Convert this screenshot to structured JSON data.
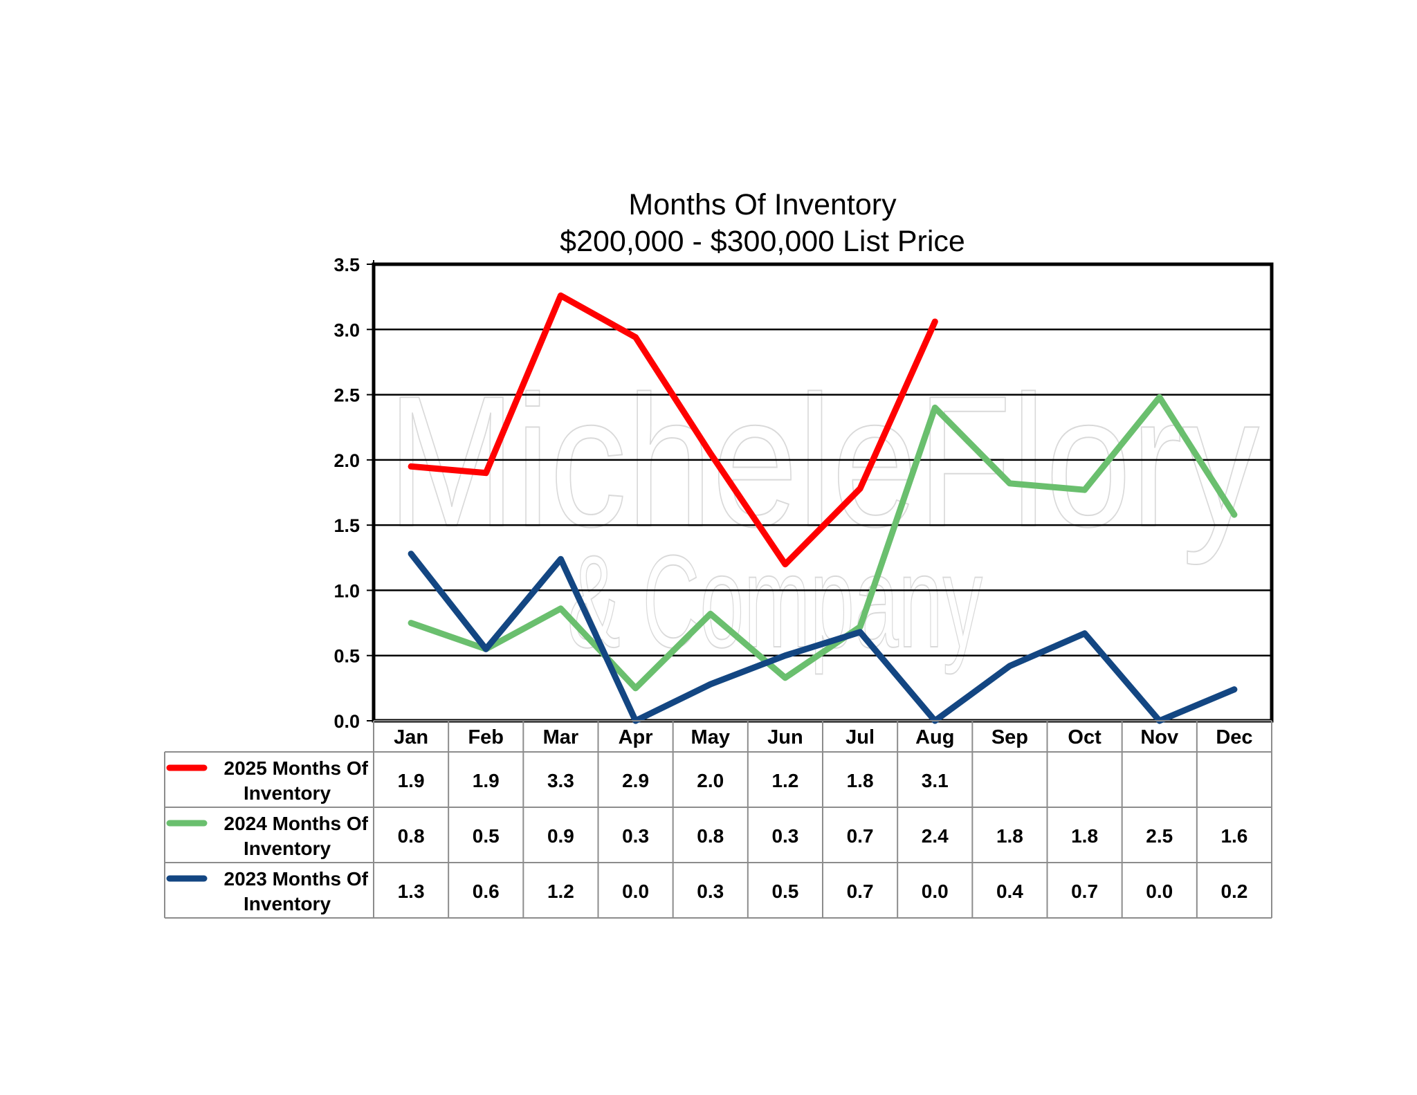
{
  "chart_data": {
    "type": "line",
    "title": "Months Of Inventory",
    "subtitle": "$200,000 - $300,000 List Price",
    "watermark": [
      "MicheleFlory",
      "& Company"
    ],
    "categories": [
      "Jan",
      "Feb",
      "Mar",
      "Apr",
      "May",
      "Jun",
      "Jul",
      "Aug",
      "Sep",
      "Oct",
      "Nov",
      "Dec"
    ],
    "ylim": [
      0,
      3.5
    ],
    "yticks": [
      "0.0",
      "0.5",
      "1.0",
      "1.5",
      "2.0",
      "2.5",
      "3.0",
      "3.5"
    ],
    "grid": true,
    "series": [
      {
        "name_line1": "2025 Months Of",
        "name_line2": "Inventory",
        "color": "#ff0000",
        "values": [
          1.95,
          1.9,
          3.26,
          2.94,
          2.05,
          1.2,
          1.78,
          3.06,
          null,
          null,
          null,
          null
        ],
        "labels": [
          "1.9",
          "1.9",
          "3.3",
          "2.9",
          "2.0",
          "1.2",
          "1.8",
          "3.1",
          "",
          "",
          "",
          ""
        ]
      },
      {
        "name_line1": "2024 Months Of",
        "name_line2": "Inventory",
        "color": "#6abf6e",
        "values": [
          0.75,
          0.55,
          0.86,
          0.25,
          0.82,
          0.33,
          0.72,
          2.4,
          1.82,
          1.77,
          2.48,
          1.58
        ],
        "labels": [
          "0.8",
          "0.5",
          "0.9",
          "0.3",
          "0.8",
          "0.3",
          "0.7",
          "2.4",
          "1.8",
          "1.8",
          "2.5",
          "1.6"
        ]
      },
      {
        "name_line1": "2023 Months Of",
        "name_line2": "Inventory",
        "color": "#134682",
        "values": [
          1.28,
          0.55,
          1.24,
          0.0,
          0.28,
          0.5,
          0.68,
          0.0,
          0.42,
          0.67,
          0.0,
          0.24
        ],
        "labels": [
          "1.3",
          "0.6",
          "1.2",
          "0.0",
          "0.3",
          "0.5",
          "0.7",
          "0.0",
          "0.4",
          "0.7",
          "0.0",
          "0.2"
        ]
      }
    ]
  }
}
